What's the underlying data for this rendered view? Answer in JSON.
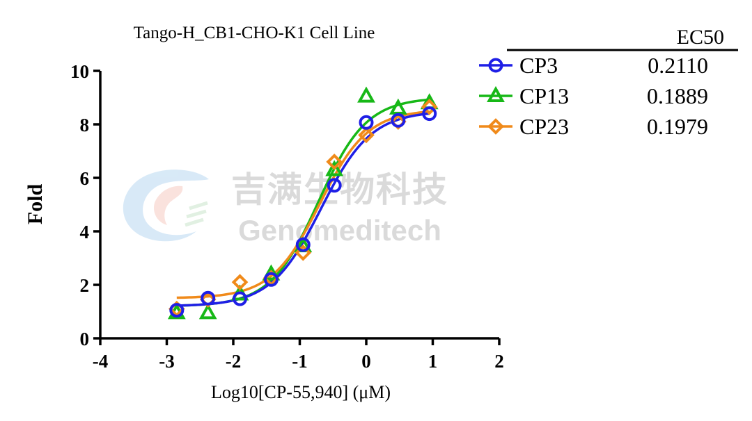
{
  "chart_data": {
    "type": "scatter",
    "title": "Tango-H_CB1-CHO-K1 Cell Line",
    "xlabel": "Log10[CP-55,940] (μM)",
    "ylabel": "Fold",
    "xlim": [
      -4,
      2
    ],
    "ylim": [
      0,
      10
    ],
    "x_ticks": [
      "-4",
      "-3",
      "-2",
      "-1",
      "0",
      "1",
      "2"
    ],
    "y_ticks": [
      "0",
      "2",
      "4",
      "6",
      "8",
      "10"
    ],
    "legend_header": "EC50",
    "legend_position": "top-right",
    "series": [
      {
        "name": "CP3",
        "ec50": "0.2110",
        "color": "#1f1fe6",
        "marker": "circle",
        "x": [
          -2.85,
          -2.38,
          -1.9,
          -1.43,
          -0.95,
          -0.48,
          0.0,
          0.48,
          0.95
        ],
        "y": [
          1.05,
          1.5,
          1.48,
          2.2,
          3.5,
          5.72,
          8.07,
          8.15,
          8.4
        ],
        "fit": {
          "bottom": 1.2,
          "top": 8.5,
          "logec50": -0.68,
          "hill": 1.15
        }
      },
      {
        "name": "CP13",
        "ec50": "0.1889",
        "color": "#17b817",
        "marker": "triangle",
        "x": [
          -2.85,
          -2.38,
          -1.9,
          -1.43,
          -0.95,
          -0.48,
          0.0,
          0.48,
          0.95
        ],
        "y": [
          0.95,
          0.95,
          1.65,
          2.4,
          3.45,
          6.3,
          9.05,
          8.6,
          8.8
        ],
        "fit": {
          "bottom": 1.2,
          "top": 9.0,
          "logec50": -0.72,
          "hill": 1.2
        }
      },
      {
        "name": "CP23",
        "ec50": "0.1979",
        "color": "#f08a1a",
        "marker": "diamond",
        "x": [
          -2.85,
          -2.38,
          -1.9,
          -1.43,
          -0.95,
          -0.48,
          0.0,
          0.48,
          0.95
        ],
        "y": [
          1.1,
          1.45,
          2.1,
          2.25,
          3.2,
          6.6,
          7.6,
          8.1,
          8.65
        ],
        "fit": {
          "bottom": 1.5,
          "top": 8.55,
          "logec50": -0.7,
          "hill": 1.2
        }
      }
    ]
  },
  "watermark": {
    "chinese": "吉满生物科技",
    "english": "Genomeditech"
  }
}
